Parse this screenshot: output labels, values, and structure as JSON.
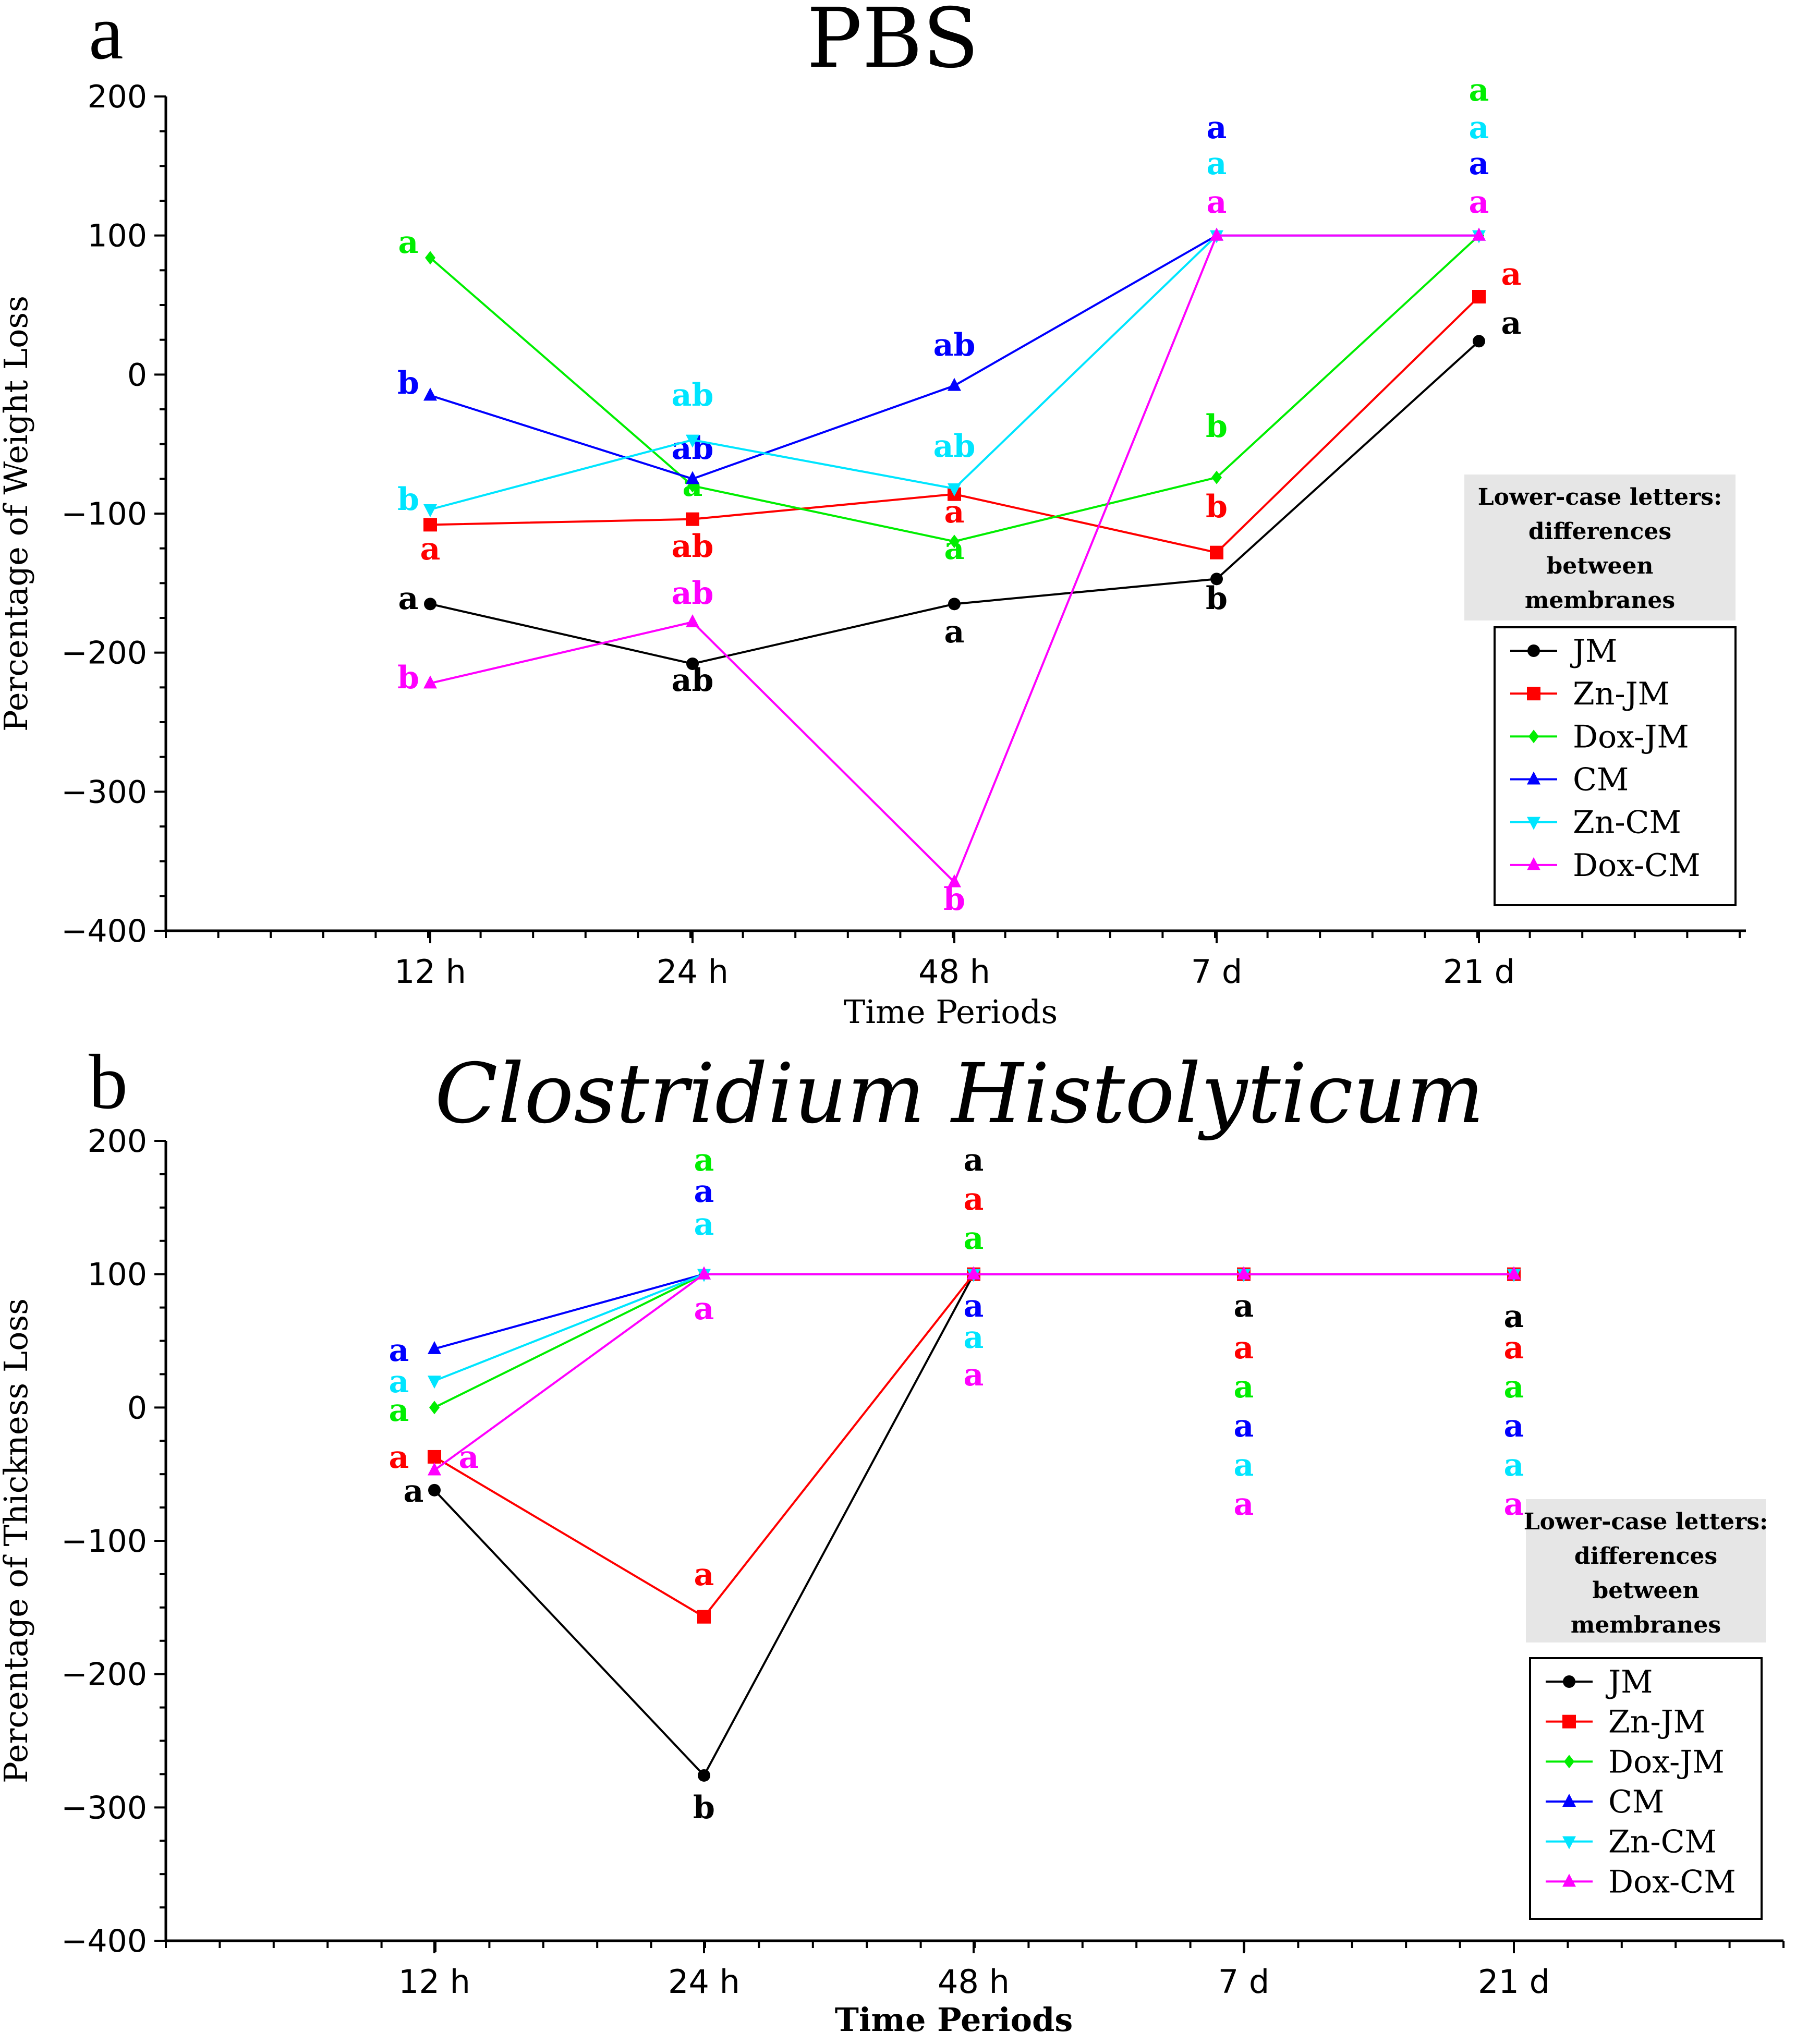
{
  "chart_data": [
    {
      "panel": "a",
      "type": "line",
      "title": "PBS",
      "title_style": "normal",
      "xlabel": "Time Periods",
      "ylabel": "Percentage of Weight Loss",
      "categories": [
        "12 h",
        "24 h",
        "48 h",
        "7 d",
        "21 d"
      ],
      "ylim": [
        -400,
        200
      ],
      "yticks": [
        200,
        100,
        0,
        -100,
        -200,
        -300,
        -400
      ],
      "ytick_labels": [
        "200",
        "100",
        "0",
        "−100",
        "−200",
        "−300",
        "−400"
      ],
      "grid": false,
      "legend_note": [
        "Lower-case letters:",
        "differences",
        "between",
        "membranes"
      ],
      "legend_position": "right",
      "series": [
        {
          "name": "JM",
          "color": "#000000",
          "marker": "circle",
          "values": [
            -165,
            -208,
            -165,
            -147,
            24
          ],
          "letters": [
            {
              "i": 0,
              "text": "a",
              "dy": 0
            },
            {
              "i": 1,
              "text": "ab",
              "dy": -20
            },
            {
              "i": 2,
              "text": "a",
              "dy": -27
            },
            {
              "i": 3,
              "text": "b",
              "dy": -17
            },
            {
              "i": 4,
              "text": "a",
              "dy": 0
            }
          ]
        },
        {
          "name": "Zn-JM",
          "color": "#ff0000",
          "marker": "square",
          "values": [
            -108,
            -104,
            -86,
            -128,
            56
          ],
          "letters": [
            {
              "i": 0,
              "text": "a",
              "dy": -24
            },
            {
              "i": 1,
              "text": "ab",
              "dy": -24
            },
            {
              "i": 2,
              "text": "a",
              "dy": -20
            },
            {
              "i": 3,
              "text": "b",
              "dy": 27
            },
            {
              "i": 4,
              "text": "a",
              "dy": 10
            }
          ]
        },
        {
          "name": "Dox-JM",
          "color": "#00ee00",
          "marker": "diamond",
          "values": [
            84,
            -80,
            -120,
            -74,
            100
          ],
          "letters": [
            {
              "i": 0,
              "text": "a",
              "dy": 6
            },
            {
              "i": 1,
              "text": "a",
              "dy": 2
            },
            {
              "i": 2,
              "text": "a",
              "dy": -14
            },
            {
              "i": 3,
              "text": "b",
              "dy": 42
            },
            {
              "i": 4,
              "text": "a",
              "dy": 95
            }
          ]
        },
        {
          "name": "CM",
          "color": "#0000ff",
          "marker": "triangle-up",
          "values": [
            -15,
            -75,
            -8,
            100,
            100
          ],
          "letters": [
            {
              "i": 0,
              "text": "b",
              "dy": 0
            },
            {
              "i": 1,
              "text": "ab",
              "dy": 12
            },
            {
              "i": 2,
              "text": "ab",
              "dy": 20
            },
            {
              "i": 3,
              "text": "a",
              "dy": 69
            },
            {
              "i": 4,
              "text": "a",
              "dy": 43
            }
          ]
        },
        {
          "name": "Zn-CM",
          "color": "#00e5ff",
          "marker": "triangle-down",
          "values": [
            -97,
            -47,
            -82,
            100,
            100
          ],
          "letters": [
            {
              "i": 0,
              "text": "b",
              "dy": 2
            },
            {
              "i": 1,
              "text": "ab",
              "dy": 24
            },
            {
              "i": 2,
              "text": "ab",
              "dy": 28
            },
            {
              "i": 3,
              "text": "a",
              "dy": 43
            },
            {
              "i": 4,
              "text": "a",
              "dy": 69
            }
          ]
        },
        {
          "name": "Dox-CM",
          "color": "#ff00ff",
          "marker": "triangle-up",
          "values": [
            -222,
            -178,
            -365,
            100,
            100
          ],
          "letters": [
            {
              "i": 0,
              "text": "b",
              "dy": -5
            },
            {
              "i": 1,
              "text": "ab",
              "dy": 15
            },
            {
              "i": 2,
              "text": "b",
              "dy": -20
            },
            {
              "i": 3,
              "text": "a",
              "dy": 15
            },
            {
              "i": 4,
              "text": "a",
              "dy": 15
            }
          ]
        }
      ]
    },
    {
      "panel": "b",
      "type": "line",
      "title": "Clostridium Histolyticum",
      "title_style": "italic",
      "xlabel": "Time Periods",
      "ylabel": "Percentage of Thickness Loss",
      "categories": [
        "12 h",
        "24 h",
        "48 h",
        "7 d",
        "21 d"
      ],
      "ylim": [
        -400,
        200
      ],
      "yticks": [
        200,
        100,
        0,
        -100,
        -200,
        -300,
        -400
      ],
      "ytick_labels": [
        "200",
        "100",
        "0",
        "−100",
        "−200",
        "−300",
        "−400"
      ],
      "grid": false,
      "legend_note": [
        "Lower-case letters:",
        "differences",
        "between",
        "membranes"
      ],
      "legend_position": "bottom-right",
      "series": [
        {
          "name": "JM",
          "color": "#000000",
          "marker": "circle",
          "values": [
            -62,
            -276,
            100,
            100,
            100
          ],
          "letters": [
            {
              "i": 0,
              "text": "a",
              "dy": 0
            },
            {
              "i": 1,
              "text": "b",
              "dy": -24
            },
            {
              "i": 2,
              "text": "a",
              "dy": 87
            },
            {
              "i": 3,
              "text": "a",
              "dy": -22
            },
            {
              "i": 4,
              "text": "a",
              "dy": -30
            }
          ]
        },
        {
          "name": "Zn-JM",
          "color": "#ff0000",
          "marker": "square",
          "values": [
            -37,
            -157,
            100,
            100,
            100
          ],
          "letters": [
            {
              "i": 0,
              "text": "a",
              "dy": 0
            },
            {
              "i": 1,
              "text": "a",
              "dy": 30
            },
            {
              "i": 2,
              "text": "a",
              "dy": 56
            },
            {
              "i": 3,
              "text": "a",
              "dy": -53
            },
            {
              "i": 4,
              "text": "a",
              "dy": -53
            }
          ]
        },
        {
          "name": "Dox-JM",
          "color": "#00ee00",
          "marker": "diamond",
          "values": [
            0,
            100,
            100,
            100,
            100
          ],
          "letters": [
            {
              "i": 0,
              "text": "a",
              "dy": 0
            },
            {
              "i": 1,
              "text": "a",
              "dy": 87
            },
            {
              "i": 2,
              "text": "a",
              "dy": 28
            },
            {
              "i": 3,
              "text": "a",
              "dy": -83
            },
            {
              "i": 4,
              "text": "a",
              "dy": -83
            }
          ]
        },
        {
          "name": "CM",
          "color": "#0000ff",
          "marker": "triangle-up",
          "values": [
            44,
            100,
            100,
            100,
            100
          ],
          "letters": [
            {
              "i": 0,
              "text": "a",
              "dy": 0
            },
            {
              "i": 1,
              "text": "a",
              "dy": 63
            },
            {
              "i": 2,
              "text": "a",
              "dy": -23
            },
            {
              "i": 3,
              "text": "a",
              "dy": -112
            },
            {
              "i": 4,
              "text": "a",
              "dy": -112
            }
          ]
        },
        {
          "name": "Zn-CM",
          "color": "#00e5ff",
          "marker": "triangle-down",
          "values": [
            20,
            100,
            100,
            100,
            100
          ],
          "letters": [
            {
              "i": 0,
              "text": "a",
              "dy": 0
            },
            {
              "i": 1,
              "text": "a",
              "dy": 38
            },
            {
              "i": 2,
              "text": "a",
              "dy": -50
            },
            {
              "i": 3,
              "text": "a",
              "dy": -143
            },
            {
              "i": 4,
              "text": "a",
              "dy": -143
            }
          ]
        },
        {
          "name": "Dox-CM",
          "color": "#ff00ff",
          "marker": "triangle-up",
          "values": [
            -47,
            100,
            100,
            100,
            100
          ],
          "letters": [
            {
              "i": 0,
              "text": "a",
              "dy": 0
            },
            {
              "i": 1,
              "text": "a",
              "dy": -22
            },
            {
              "i": 2,
              "text": "a",
              "dy": -75
            },
            {
              "i": 3,
              "text": "a",
              "dy": -173
            },
            {
              "i": 4,
              "text": "a",
              "dy": -173
            }
          ]
        }
      ]
    }
  ],
  "panel_letters": [
    "a",
    "b"
  ]
}
